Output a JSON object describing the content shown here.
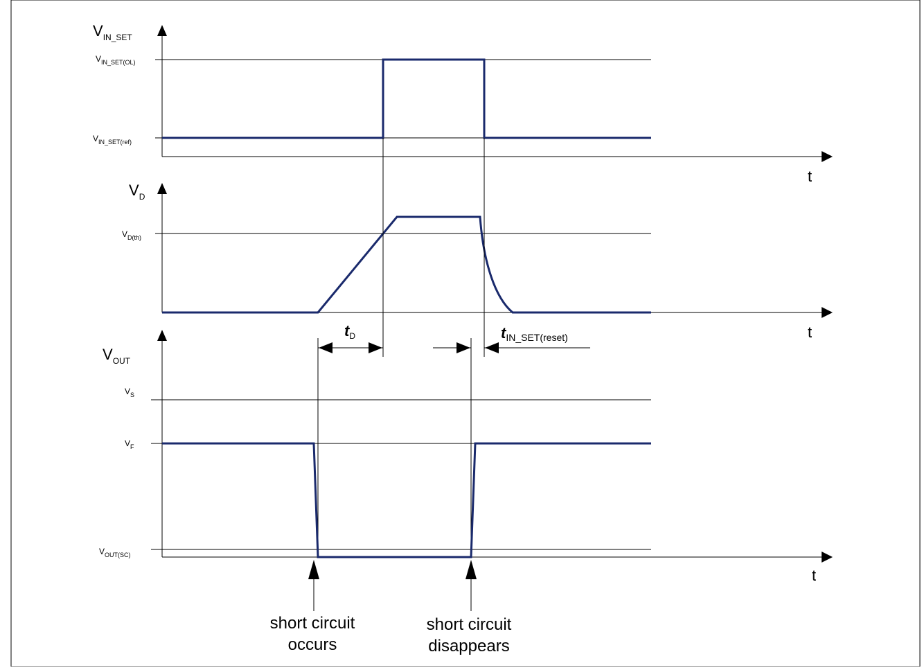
{
  "panels": {
    "vin": {
      "axis": {
        "base": "V",
        "sub": "IN_SET"
      },
      "levels": [
        {
          "base": "V",
          "sub": "IN_SET(OL)"
        },
        {
          "base": "V",
          "sub": "IN_SET(ref)"
        }
      ],
      "t_label": "t"
    },
    "vd": {
      "axis": {
        "base": "V",
        "sub": "D"
      },
      "levels": [
        {
          "base": "V",
          "sub": "D(th)"
        }
      ],
      "t_label": "t"
    },
    "vout": {
      "axis": {
        "base": "V",
        "sub": "OUT"
      },
      "levels": [
        {
          "base": "V",
          "sub": "S"
        },
        {
          "base": "V",
          "sub": "F"
        },
        {
          "base": "V",
          "sub": "OUT(SC)"
        }
      ],
      "t_label": "t"
    }
  },
  "timings": {
    "tD": {
      "base": "t",
      "sub": "D"
    },
    "treset": {
      "base": "t",
      "sub": "IN_SET(reset)"
    }
  },
  "events": {
    "occurs": {
      "line1": "short circuit",
      "line2": "occurs"
    },
    "disappears": {
      "line1": "short circuit",
      "line2": "disappears"
    }
  },
  "colors": {
    "trace": "#1a2a6c",
    "line": "#000000"
  }
}
